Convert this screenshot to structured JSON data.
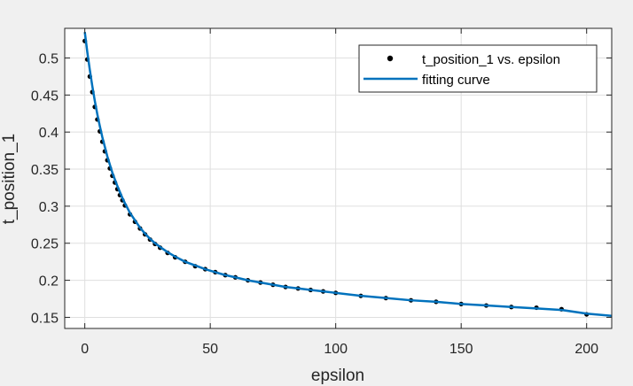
{
  "chart_data": {
    "type": "scatter",
    "title": "",
    "xlabel": "epsilon",
    "ylabel": "t_position_1",
    "xlim": [
      -8,
      210
    ],
    "ylim": [
      0.135,
      0.54
    ],
    "xticks": [
      0,
      50,
      100,
      150,
      200
    ],
    "xtick_labels": [
      "0",
      "50",
      "100",
      "150",
      "200"
    ],
    "yticks": [
      0.15,
      0.2,
      0.25,
      0.3,
      0.35,
      0.4,
      0.45,
      0.5
    ],
    "ytick_labels": [
      "0.15",
      "0.2",
      "0.25",
      "0.3",
      "0.35",
      "0.4",
      "0.45",
      "0.5"
    ],
    "grid": true,
    "legend_location": "top-right",
    "series": [
      {
        "name": "t_position_1 vs. epsilon",
        "kind": "markers",
        "color": "#000000",
        "x": [
          0,
          1,
          2,
          3,
          4,
          5,
          6,
          7,
          8,
          9,
          10,
          11,
          12,
          13,
          14,
          15,
          16,
          18,
          20,
          22,
          24,
          26,
          28,
          30,
          33,
          36,
          40,
          44,
          48,
          52,
          56,
          60,
          65,
          70,
          75,
          80,
          85,
          90,
          95,
          100,
          110,
          120,
          130,
          140,
          150,
          160,
          170,
          180,
          190,
          200
        ],
        "y": [
          0.523,
          0.498,
          0.475,
          0.454,
          0.434,
          0.417,
          0.401,
          0.387,
          0.374,
          0.362,
          0.351,
          0.341,
          0.332,
          0.323,
          0.315,
          0.308,
          0.301,
          0.289,
          0.279,
          0.27,
          0.262,
          0.255,
          0.249,
          0.244,
          0.237,
          0.231,
          0.225,
          0.219,
          0.215,
          0.211,
          0.207,
          0.204,
          0.2,
          0.197,
          0.194,
          0.191,
          0.189,
          0.187,
          0.185,
          0.183,
          0.179,
          0.176,
          0.173,
          0.171,
          0.168,
          0.166,
          0.164,
          0.163,
          0.161,
          0.154
        ]
      },
      {
        "name": "fitting curve",
        "kind": "line",
        "color": "#0072bd",
        "x": [
          0,
          1,
          2,
          3,
          4,
          5,
          6,
          7,
          8,
          9,
          10,
          11,
          12,
          13,
          14,
          15,
          16,
          18,
          20,
          22,
          24,
          26,
          28,
          30,
          33,
          36,
          40,
          44,
          48,
          52,
          56,
          60,
          65,
          70,
          75,
          80,
          85,
          90,
          95,
          100,
          110,
          120,
          130,
          140,
          150,
          160,
          170,
          180,
          190,
          200,
          210
        ],
        "y": [
          0.535,
          0.508,
          0.484,
          0.462,
          0.442,
          0.424,
          0.408,
          0.393,
          0.38,
          0.367,
          0.356,
          0.345,
          0.336,
          0.327,
          0.319,
          0.311,
          0.304,
          0.291,
          0.281,
          0.271,
          0.263,
          0.256,
          0.25,
          0.245,
          0.238,
          0.232,
          0.225,
          0.22,
          0.215,
          0.211,
          0.207,
          0.204,
          0.2,
          0.197,
          0.194,
          0.191,
          0.189,
          0.187,
          0.185,
          0.183,
          0.179,
          0.176,
          0.173,
          0.171,
          0.168,
          0.166,
          0.164,
          0.162,
          0.16,
          0.155,
          0.152
        ]
      }
    ]
  }
}
